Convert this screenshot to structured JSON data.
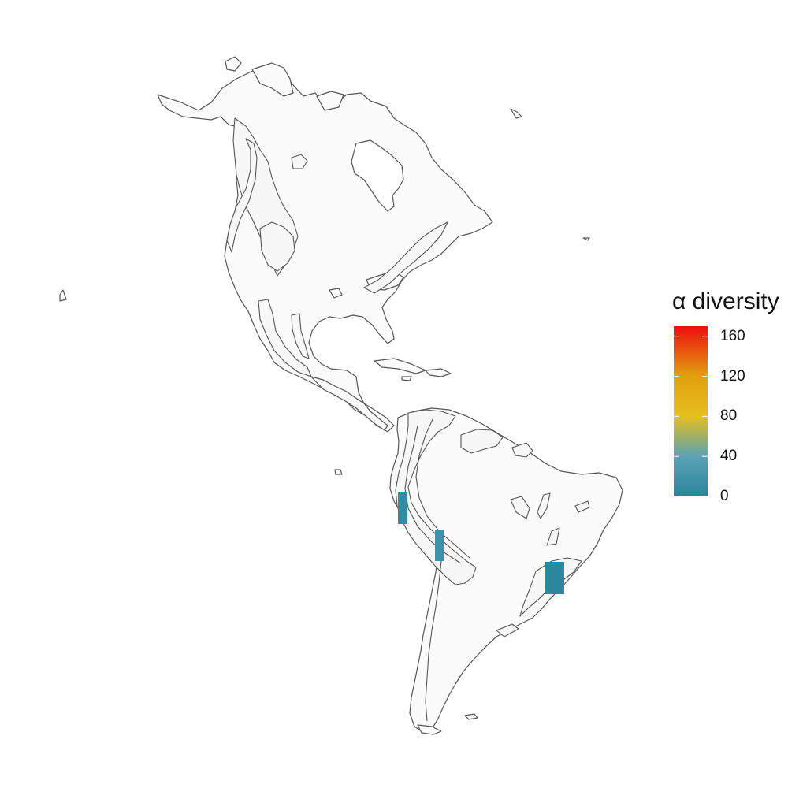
{
  "legend": {
    "title": "α diversity",
    "max": 170,
    "ticks": [
      {
        "value": 0,
        "label": "0"
      },
      {
        "value": 40,
        "label": "40"
      },
      {
        "value": 80,
        "label": "80"
      },
      {
        "value": 120,
        "label": "120"
      },
      {
        "value": 160,
        "label": "160"
      }
    ],
    "colors": [
      {
        "value": 0,
        "color": "#2c849c"
      },
      {
        "value": 40,
        "color": "#5aa3b4"
      },
      {
        "value": 80,
        "color": "#e6bf1f"
      },
      {
        "value": 120,
        "color": "#e0a10f"
      },
      {
        "value": 170,
        "color": "#f00d0d"
      }
    ]
  },
  "cells": [
    {
      "region": "peru-north",
      "value": 8
    },
    {
      "region": "peru-south",
      "value": 15
    },
    {
      "region": "brazil-southeast",
      "value": 2
    }
  ]
}
